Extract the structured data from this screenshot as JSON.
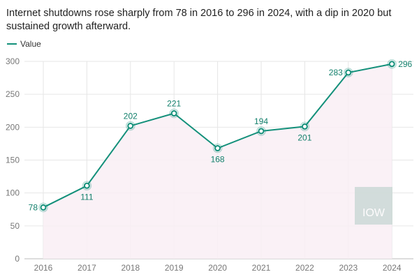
{
  "subtitle": "Internet shutdowns rose sharply from 78 in 2016 to 296 in 2024, with a dip in 2020 but sustained growth afterward.",
  "watermark": "IOW",
  "colors": {
    "line": "#13907a",
    "area": "#f9eef4",
    "grid": "#e6e6e6"
  },
  "chart_data": {
    "type": "area",
    "title": "",
    "xlabel": "",
    "ylabel": "",
    "categories": [
      "2016",
      "2017",
      "2018",
      "2019",
      "2020",
      "2021",
      "2022",
      "2023",
      "2024"
    ],
    "series": [
      {
        "name": "Value",
        "values": [
          78,
          111,
          202,
          221,
          168,
          194,
          201,
          283,
          296
        ]
      }
    ],
    "ylim": [
      0,
      300
    ],
    "yticks": [
      0,
      50,
      100,
      150,
      200,
      250,
      300
    ],
    "grid": true,
    "legend": "top-left",
    "data_labels": true
  }
}
